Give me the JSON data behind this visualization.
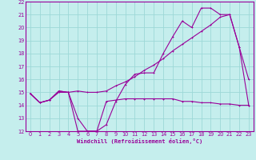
{
  "xlabel": "Windchill (Refroidissement éolien,°C)",
  "bg_color": "#c5eeed",
  "grid_color": "#9dd8d7",
  "line_color": "#990099",
  "xlim": [
    -0.5,
    23.5
  ],
  "ylim": [
    12,
    22
  ],
  "xticks": [
    0,
    1,
    2,
    3,
    4,
    5,
    6,
    7,
    8,
    9,
    10,
    11,
    12,
    13,
    14,
    15,
    16,
    17,
    18,
    19,
    20,
    21,
    22,
    23
  ],
  "yticks": [
    12,
    13,
    14,
    15,
    16,
    17,
    18,
    19,
    20,
    21,
    22
  ],
  "curve1_x": [
    0,
    1,
    2,
    3,
    4,
    5,
    6,
    7,
    8,
    9,
    10,
    11,
    12,
    13,
    14,
    15,
    16,
    17,
    18,
    19,
    20,
    21,
    22,
    23
  ],
  "curve1_y": [
    14.9,
    14.2,
    14.4,
    15.0,
    15.0,
    12.0,
    12.0,
    12.0,
    14.3,
    14.4,
    14.5,
    14.5,
    14.5,
    14.5,
    14.5,
    14.5,
    14.3,
    14.3,
    14.2,
    14.2,
    14.1,
    14.1,
    14.0,
    14.0
  ],
  "curve2_x": [
    0,
    1,
    2,
    3,
    4,
    5,
    6,
    7,
    8,
    9,
    10,
    11,
    12,
    13,
    14,
    15,
    16,
    17,
    18,
    19,
    20,
    21,
    22,
    23
  ],
  "curve2_y": [
    14.9,
    14.2,
    14.4,
    15.1,
    15.0,
    13.0,
    12.0,
    12.0,
    12.5,
    14.3,
    15.6,
    16.4,
    16.5,
    16.5,
    18.0,
    19.3,
    20.5,
    20.0,
    21.5,
    21.5,
    21.0,
    21.0,
    18.5,
    16.0
  ],
  "curve3_x": [
    0,
    1,
    2,
    3,
    4,
    5,
    6,
    7,
    8,
    9,
    10,
    11,
    12,
    13,
    14,
    15,
    16,
    17,
    18,
    19,
    20,
    21,
    22,
    23
  ],
  "curve3_y": [
    14.9,
    14.2,
    14.4,
    15.1,
    15.0,
    15.1,
    15.0,
    15.0,
    15.1,
    15.5,
    15.8,
    16.2,
    16.7,
    17.1,
    17.6,
    18.2,
    18.7,
    19.2,
    19.7,
    20.2,
    20.8,
    21.0,
    18.5,
    14.0
  ]
}
